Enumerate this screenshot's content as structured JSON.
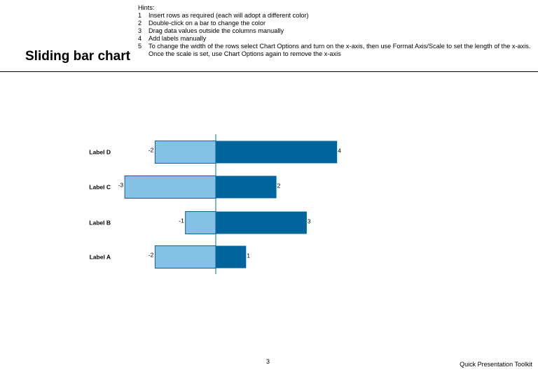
{
  "page": {
    "title": "Sliding bar chart",
    "hints_heading": "Hints:",
    "hints": [
      {
        "num": "1",
        "text": "Insert rows as required (each will adopt a different color)"
      },
      {
        "num": "2",
        "text": "Double-click on a bar to change the color"
      },
      {
        "num": "3",
        "text": "Drag data values outside the columns manually"
      },
      {
        "num": "4",
        "text": "Add labels manually"
      },
      {
        "num": "5",
        "text": "To change the width of the rows select Chart Options and turn on the x-axis, then use Format Axis/Scale to set the length of the x-axis. Once the scale is set, use Chart Options again to remove the x-axis"
      }
    ],
    "page_number": "3",
    "footer": "Quick Presentation Toolkit"
  },
  "colors": {
    "negative": "#85C1E6",
    "positive": "#00659C",
    "axis": "#00659C"
  },
  "chart_data": {
    "type": "bar",
    "orientation": "horizontal",
    "categories": [
      "Label D",
      "Label C",
      "Label B",
      "Label A"
    ],
    "series": [
      {
        "values": [
          -2,
          -3,
          -1,
          -2
        ]
      },
      {
        "values": [
          4,
          2,
          3,
          1
        ]
      }
    ],
    "data_labels": {
      "negative": [
        "-2",
        "-3",
        "-1",
        "-2"
      ],
      "positive": [
        "4",
        "2",
        "3",
        "1"
      ]
    },
    "xlim": [
      -3,
      4
    ],
    "x_axis_visible": false,
    "grid": false,
    "legend": "none"
  }
}
